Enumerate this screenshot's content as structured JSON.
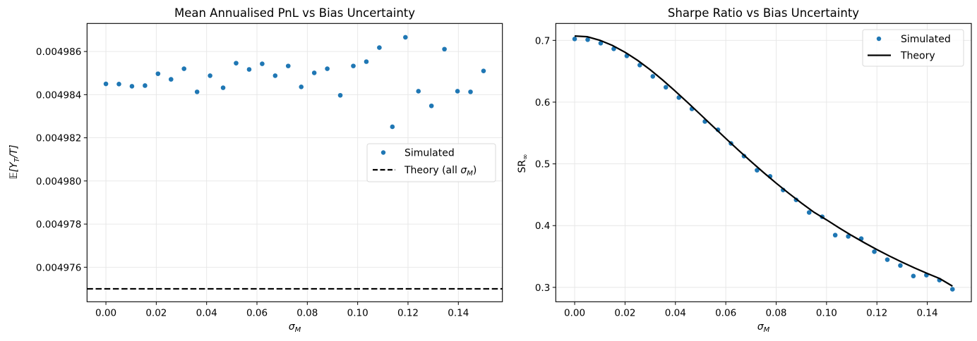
{
  "chart_data": [
    {
      "type": "scatter",
      "title": "Mean Annualised PnL vs Bias Uncertainty",
      "xlabel": "σ_M",
      "ylabel": "𝔼[Y_T/T]",
      "xlim": [
        -0.0075,
        0.1575
      ],
      "ylim": [
        0.0049744,
        0.0049873
      ],
      "x_ticks": [
        "0.00",
        "0.02",
        "0.04",
        "0.06",
        "0.08",
        "0.10",
        "0.12",
        "0.14"
      ],
      "y_ticks": [
        "0.004976",
        "0.004978",
        "0.004980",
        "0.004982",
        "0.004984",
        "0.004986"
      ],
      "grid": true,
      "legend_position": "center-right",
      "series": [
        {
          "name": "Simulated",
          "style": "markers",
          "color": "#1f77b4",
          "x": [
            0.0,
            0.00517,
            0.01034,
            0.01552,
            0.02069,
            0.02586,
            0.03103,
            0.03621,
            0.04138,
            0.04655,
            0.05172,
            0.0569,
            0.06207,
            0.06724,
            0.07241,
            0.07759,
            0.08276,
            0.08793,
            0.0931,
            0.09828,
            0.10345,
            0.10862,
            0.11379,
            0.11897,
            0.12414,
            0.12931,
            0.13448,
            0.13966,
            0.14483,
            0.15
          ],
          "y": [
            0.0049845,
            0.00498449,
            0.00498439,
            0.00498442,
            0.00498497,
            0.00498471,
            0.0049852,
            0.00498413,
            0.00498488,
            0.00498432,
            0.00498546,
            0.00498517,
            0.00498543,
            0.00498488,
            0.00498533,
            0.00498436,
            0.00498501,
            0.0049852,
            0.00498397,
            0.00498533,
            0.00498553,
            0.00498618,
            0.00498251,
            0.00498666,
            0.00498416,
            0.00498348,
            0.00498611,
            0.00498416,
            0.00498413,
            0.0049851
          ]
        },
        {
          "name": "Theory (all σ_M)",
          "legend_label": "Theory (all ",
          "legend_sigma": "σ",
          "legend_sub": "M",
          "legend_close": ")",
          "style": "dashed",
          "color": "#000000",
          "x": [
            -0.0075,
            0.1575
          ],
          "y": [
            0.004975,
            0.004975
          ]
        }
      ]
    },
    {
      "type": "scatter",
      "title": "Sharpe Ratio vs Bias Uncertainty",
      "xlabel": "σ_M",
      "ylabel": "SR∞",
      "xlim": [
        -0.0075,
        0.1575
      ],
      "ylim": [
        0.2767,
        0.7274
      ],
      "x_ticks": [
        "0.00",
        "0.02",
        "0.04",
        "0.06",
        "0.08",
        "0.10",
        "0.12",
        "0.14"
      ],
      "y_ticks": [
        "0.3",
        "0.4",
        "0.5",
        "0.6",
        "0.7"
      ],
      "grid": true,
      "legend_position": "top-right",
      "series": [
        {
          "name": "Simulated",
          "style": "markers",
          "color": "#1f77b4",
          "x": [
            0.0,
            0.00517,
            0.01034,
            0.01552,
            0.02069,
            0.02586,
            0.03103,
            0.03621,
            0.04138,
            0.04655,
            0.05172,
            0.0569,
            0.06207,
            0.06724,
            0.07241,
            0.07759,
            0.08276,
            0.08793,
            0.0931,
            0.09828,
            0.10345,
            0.10862,
            0.11379,
            0.11897,
            0.12414,
            0.12931,
            0.13448,
            0.13966,
            0.14483,
            0.15
          ],
          "y": [
            0.7023,
            0.7011,
            0.6954,
            0.6863,
            0.6749,
            0.66,
            0.6417,
            0.6241,
            0.6074,
            0.5891,
            0.5686,
            0.5552,
            0.5331,
            0.5126,
            0.4897,
            0.4798,
            0.4577,
            0.4417,
            0.4213,
            0.4144,
            0.3846,
            0.3826,
            0.3789,
            0.3578,
            0.3449,
            0.3354,
            0.3183,
            0.3198,
            0.3118,
            0.2969
          ]
        },
        {
          "name": "Theory",
          "style": "line",
          "color": "#000000",
          "x": [
            0.0,
            0.005,
            0.01,
            0.015,
            0.02,
            0.025,
            0.03,
            0.035,
            0.04,
            0.045,
            0.05,
            0.055,
            0.06,
            0.065,
            0.07,
            0.075,
            0.08,
            0.085,
            0.09,
            0.095,
            0.1,
            0.105,
            0.11,
            0.115,
            0.12,
            0.125,
            0.13,
            0.135,
            0.14,
            0.145,
            0.15
          ],
          "y": [
            0.7071,
            0.7059,
            0.7002,
            0.6918,
            0.6808,
            0.6676,
            0.6524,
            0.6356,
            0.6176,
            0.5989,
            0.5797,
            0.5604,
            0.5412,
            0.5223,
            0.5039,
            0.486,
            0.4688,
            0.4524,
            0.4367,
            0.4217,
            0.4094,
            0.3964,
            0.384,
            0.3723,
            0.3612,
            0.3507,
            0.3408,
            0.3314,
            0.3225,
            0.3141,
            0.302
          ]
        }
      ]
    }
  ],
  "labels": {
    "sigma": "σ",
    "sub_M": "M",
    "left_ylabel_E": "𝔼",
    "left_ylabel_rest_open": "[Y",
    "left_ylabel_sub": "T",
    "left_ylabel_rest_close": "/T]",
    "right_ylabel_main": "SR",
    "right_ylabel_sub": "∞"
  }
}
